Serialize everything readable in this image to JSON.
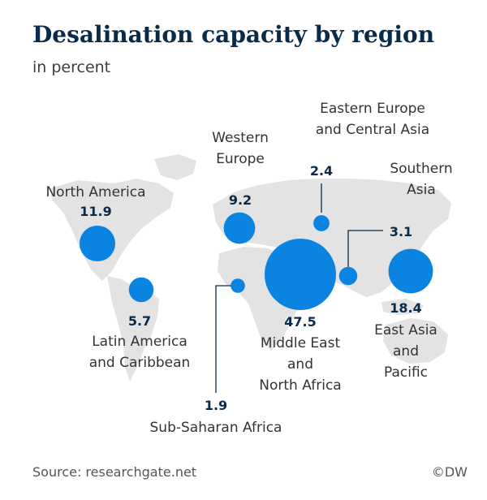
{
  "title": "Desalination capacity by region",
  "subtitle": "in percent",
  "source": "Source: researchgate.net",
  "credit": "©DW",
  "colors": {
    "bubble": "#0a84e0",
    "land": "#e3e3e3",
    "value_text": "#0a2a4a",
    "label_text": "#333333",
    "leader": "#0a2a4a"
  },
  "chart_data": {
    "type": "bubble-map",
    "unit": "percent",
    "regions": [
      {
        "name": "North America",
        "name_lines": [
          "North America"
        ],
        "value": 11.9
      },
      {
        "name": "Latin America and Caribbean",
        "name_lines": [
          "Latin America",
          "and Caribbean"
        ],
        "value": 5.7
      },
      {
        "name": "Western Europe",
        "name_lines": [
          "Western",
          "Europe"
        ],
        "value": 9.2
      },
      {
        "name": "Eastern Europe and Central Asia",
        "name_lines": [
          "Eastern Europe",
          "and Central Asia"
        ],
        "value": 2.4
      },
      {
        "name": "Middle East and North Africa",
        "name_lines": [
          "Middle East",
          "and",
          "North Africa"
        ],
        "value": 47.5
      },
      {
        "name": "Sub-Saharan Africa",
        "name_lines": [
          "Sub-Saharan Africa"
        ],
        "value": 1.9
      },
      {
        "name": "Southern Asia",
        "name_lines": [
          "Southern",
          "Asia"
        ],
        "value": 3.1
      },
      {
        "name": "East Asia and Pacific",
        "name_lines": [
          "East Asia",
          "and",
          "Pacific"
        ],
        "value": 18.4
      }
    ]
  }
}
